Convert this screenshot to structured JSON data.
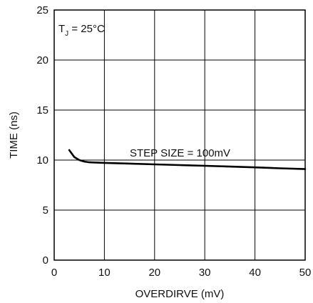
{
  "chart_data": {
    "type": "line",
    "title": "",
    "xlabel": "OVERDIRVE (mV)",
    "ylabel": "TIME (ns)",
    "xlim": [
      0,
      50
    ],
    "ylim": [
      0,
      25
    ],
    "x_ticks": [
      0,
      10,
      20,
      30,
      40,
      50
    ],
    "y_ticks": [
      0,
      5,
      10,
      15,
      20,
      25
    ],
    "grid": true,
    "annotations": {
      "temperature_main": "T",
      "temperature_sub": "J",
      "temperature_value": " = 25°C",
      "step_size": "STEP SIZE = 100mV"
    },
    "series": [
      {
        "x": [
          3,
          4,
          5,
          6,
          7,
          10,
          15,
          20,
          25,
          30,
          35,
          40,
          45,
          50
        ],
        "y": [
          11.0,
          10.3,
          10.0,
          9.85,
          9.78,
          9.72,
          9.65,
          9.57,
          9.5,
          9.43,
          9.35,
          9.27,
          9.18,
          9.1
        ]
      }
    ]
  }
}
